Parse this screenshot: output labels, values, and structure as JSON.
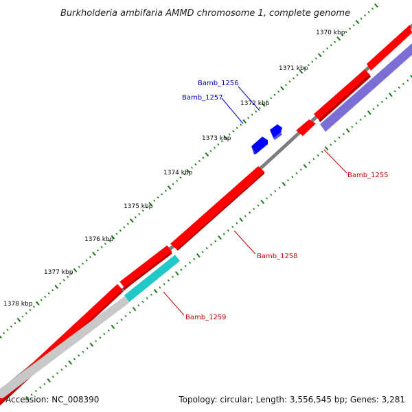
{
  "title": "Burkholderia ambifaria AMMD chromosome 1, complete genome",
  "footer": {
    "accession": "Accession: NC_008390",
    "summary": "Topology: circular; Length: 3,556,545 bp; Genes: 3,281"
  },
  "ruler": {
    "tick_labels": [
      "1370 kbp",
      "1371 kbp",
      "1372 kbp",
      "1373 kbp",
      "1374 kbp",
      "1375 kbp",
      "1376 kbp",
      "1377 kbp",
      "1378 kbp"
    ]
  },
  "genes": [
    {
      "id": "Bamb_1256",
      "color": "#0000cc"
    },
    {
      "id": "Bamb_1257",
      "color": "#0000cc"
    },
    {
      "id": "Bamb_1255",
      "color": "#cc0000"
    },
    {
      "id": "Bamb_1258",
      "color": "#cc0000"
    },
    {
      "id": "Bamb_1259",
      "color": "#cc0000"
    }
  ],
  "colors": {
    "backbone": "#808080",
    "cds_forward": "#ff0000",
    "cds_reverse": "#0000ff",
    "cog_purple": "#7b6fd6",
    "cog_cyan": "#22c7c7",
    "cog_grey": "#c8c8c8",
    "ticks": "#117711"
  }
}
